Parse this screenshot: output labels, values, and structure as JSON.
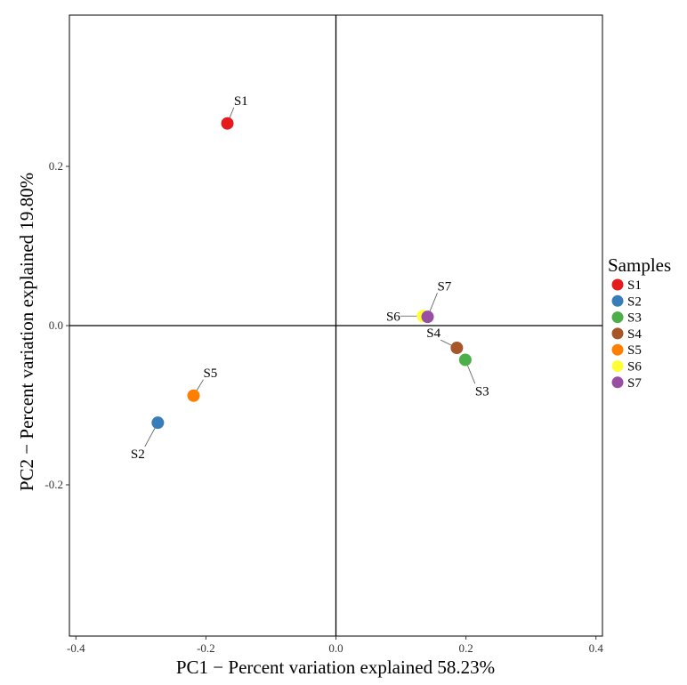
{
  "chart_data": {
    "type": "scatter",
    "xlabel": "PC1 − Percent variation explained 58.23%",
    "ylabel": "PC2 − Percent variation explained 19.80%",
    "xlim": [
      -0.41,
      0.41
    ],
    "ylim": [
      -0.39,
      0.39
    ],
    "x_ticks": [
      -0.4,
      -0.2,
      0.0,
      0.2,
      0.4
    ],
    "x_tick_labels": [
      "-0.4",
      "-0.2",
      "0.0",
      "0.2",
      "0.4"
    ],
    "y_ticks": [
      -0.2,
      0.0,
      0.2
    ],
    "y_tick_labels": [
      "-0.2",
      "0.0",
      "0.2"
    ],
    "grid": false,
    "reference_lines": {
      "x": 0,
      "y": 0
    },
    "legend": {
      "title": "Samples",
      "placement": "right",
      "entries": [
        {
          "name": "S1",
          "color": "#e41a1c"
        },
        {
          "name": "S2",
          "color": "#377eb8"
        },
        {
          "name": "S3",
          "color": "#4daf4a"
        },
        {
          "name": "S4",
          "color": "#a65628"
        },
        {
          "name": "S5",
          "color": "#ff7f00"
        },
        {
          "name": "S6",
          "color": "#ffff33"
        },
        {
          "name": "S7",
          "color": "#984ea3"
        }
      ]
    },
    "points": [
      {
        "label": "S1",
        "x": -0.167,
        "y": 0.254,
        "color": "#e41a1c",
        "label_dx": 0.01,
        "label_dy": 0.02
      },
      {
        "label": "S2",
        "x": -0.274,
        "y": -0.122,
        "color": "#377eb8",
        "label_dx": -0.02,
        "label_dy": -0.03
      },
      {
        "label": "S3",
        "x": 0.199,
        "y": -0.043,
        "color": "#4daf4a",
        "label_dx": 0.015,
        "label_dy": -0.03
      },
      {
        "label": "S4",
        "x": 0.186,
        "y": -0.028,
        "color": "#a65628",
        "label_dx": -0.025,
        "label_dy": 0.01
      },
      {
        "label": "S5",
        "x": -0.219,
        "y": -0.088,
        "color": "#ff7f00",
        "label_dx": 0.015,
        "label_dy": 0.02
      },
      {
        "label": "S6",
        "x": 0.134,
        "y": 0.012,
        "color": "#ffff33",
        "label_dx": -0.035,
        "label_dy": 0.0
      },
      {
        "label": "S7",
        "x": 0.141,
        "y": 0.011,
        "color": "#984ea3",
        "label_dx": 0.015,
        "label_dy": 0.03
      }
    ]
  }
}
